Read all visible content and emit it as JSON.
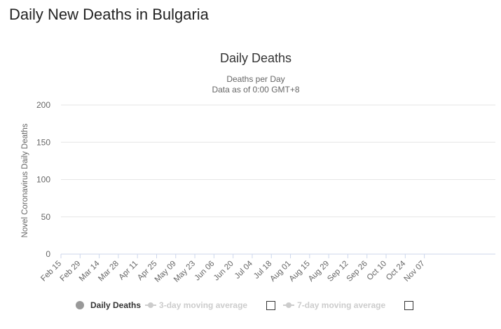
{
  "page": {
    "title": "Daily New Deaths in Bulgaria"
  },
  "chart_data": {
    "type": "bar",
    "title": "Daily Deaths",
    "subtitle_lines": [
      "Deaths per Day",
      "Data as of 0:00 GMT+8"
    ],
    "xlabel": "",
    "ylabel": "Novel Coronavirus Daily Deaths",
    "ylim": [
      0,
      200
    ],
    "yticks": [
      0,
      50,
      100,
      150,
      200
    ],
    "grid": true,
    "legend_position": "bottom",
    "bar_color": "#999999",
    "start_date": "Feb 15",
    "xtick_labels": [
      "Feb 15",
      "Feb 29",
      "Mar 14",
      "Mar 28",
      "Apr 11",
      "Apr 25",
      "May 09",
      "May 23",
      "Jun 06",
      "Jun 20",
      "Jul 04",
      "Jul 18",
      "Aug 01",
      "Aug 15",
      "Aug 29",
      "Sep 12",
      "Sep 26",
      "Oct 10",
      "Oct 24",
      "Nov 07"
    ],
    "series": [
      {
        "name": "Daily Deaths",
        "values": [
          0,
          0,
          0,
          0,
          0,
          0,
          0,
          0,
          0,
          0,
          0,
          0,
          0,
          0,
          0,
          0,
          0,
          0,
          0,
          0,
          0,
          0,
          0,
          0,
          0,
          0,
          0,
          0,
          0,
          0,
          0,
          0,
          0,
          0,
          0,
          0,
          0,
          0,
          0,
          0,
          0,
          0,
          0,
          0,
          0,
          0,
          0,
          0,
          0,
          0,
          0,
          0,
          0,
          0,
          0,
          0,
          0,
          0,
          0,
          0,
          0,
          0,
          0,
          0,
          0,
          0,
          0,
          0,
          0,
          0,
          0,
          0,
          0,
          0,
          0,
          0,
          0,
          0,
          0,
          0,
          0,
          0,
          0,
          0,
          0,
          0,
          0,
          0,
          0,
          0,
          0,
          0,
          0,
          0,
          0,
          0,
          0,
          0,
          0,
          0,
          0,
          0,
          0,
          0,
          0,
          0,
          0,
          0,
          0,
          0,
          0,
          0,
          0,
          0,
          0,
          0,
          0,
          0,
          0,
          0,
          0,
          0,
          0,
          0,
          0,
          0,
          0,
          0,
          0,
          0,
          0,
          0,
          0,
          0,
          0,
          0,
          0,
          0,
          0,
          0,
          0,
          0,
          0,
          0,
          0,
          0,
          0,
          0,
          0,
          0,
          0,
          0,
          0,
          0,
          0,
          0,
          0,
          0,
          0,
          0,
          0,
          0,
          0,
          0,
          0,
          0,
          0,
          0,
          0,
          0,
          0,
          0,
          0,
          0,
          0,
          0,
          0,
          0,
          0,
          0,
          0,
          0,
          0,
          0,
          0,
          0,
          0,
          0,
          0,
          0,
          0,
          0,
          0,
          0,
          0,
          0,
          0,
          0,
          0,
          0,
          0,
          0,
          0,
          0,
          0,
          0,
          0,
          0,
          0,
          0,
          0,
          0,
          0,
          0,
          0,
          0,
          0,
          0,
          0,
          0,
          0,
          0,
          0,
          0,
          0,
          0,
          0,
          0,
          0,
          0,
          0,
          0,
          0,
          0,
          0,
          0,
          0,
          0,
          0,
          0,
          0,
          0,
          0,
          0,
          0,
          0,
          0,
          0,
          0,
          0,
          0,
          0,
          0,
          0,
          0,
          0,
          0,
          0,
          0,
          0,
          0,
          0,
          0,
          0,
          0,
          0,
          0,
          0,
          0,
          0,
          0,
          0,
          0,
          0,
          0,
          0,
          0,
          0,
          0,
          0,
          0,
          0,
          0,
          0,
          0,
          0,
          0,
          0,
          0,
          0,
          0,
          0,
          0,
          0,
          0,
          0,
          0,
          0,
          0,
          0,
          0,
          0,
          0,
          0,
          0,
          0,
          0,
          0,
          0,
          0,
          0,
          0,
          0,
          0,
          0,
          0,
          0,
          0
        ]
      },
      {
        "name": "3-day moving average",
        "values": [],
        "visible": false
      },
      {
        "name": "7-day moving average",
        "values": [],
        "visible": false
      }
    ]
  },
  "legend": {
    "items": [
      {
        "label": "Daily Deaths",
        "color": "#999999",
        "active": true
      },
      {
        "label": "3-day moving average",
        "color": "#cccccc",
        "active": false
      },
      {
        "label": "7-day moving average",
        "color": "#cccccc",
        "active": false
      }
    ]
  }
}
